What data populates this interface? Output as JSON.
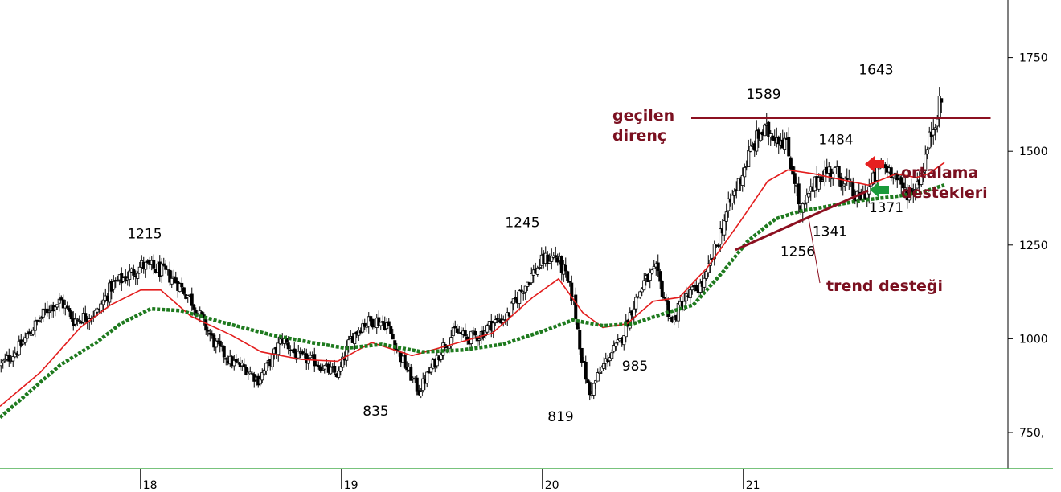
{
  "chart_data": {
    "type": "candlestick",
    "title": "",
    "xlabel": "",
    "ylabel": "",
    "ylim": [
      640,
      1900
    ],
    "y_ticks": [
      "1750",
      "1500",
      "1250",
      "1000",
      "750,"
    ],
    "y_tick_values": [
      1750,
      1500,
      1250,
      1000,
      750
    ],
    "x_ticks": [
      {
        "label": "18",
        "x": 70.5
      },
      {
        "label": "19",
        "x": 170.5
      },
      {
        "label": "20",
        "x": 270.5
      },
      {
        "label": "21",
        "x": 370.5
      }
    ],
    "xlim": [
      0,
      473
    ],
    "price_path": [
      [
        0,
        930
      ],
      [
        8,
        970
      ],
      [
        16,
        1030
      ],
      [
        24,
        1085
      ],
      [
        30,
        1100
      ],
      [
        36,
        1050
      ],
      [
        42,
        1060
      ],
      [
        48,
        1070
      ],
      [
        55,
        1140
      ],
      [
        62,
        1165
      ],
      [
        70,
        1195
      ],
      [
        78,
        1185
      ],
      [
        86,
        1160
      ],
      [
        94,
        1110
      ],
      [
        100,
        1050
      ],
      [
        106,
        990
      ],
      [
        114,
        940
      ],
      [
        122,
        920
      ],
      [
        128,
        890
      ],
      [
        134,
        940
      ],
      [
        140,
        1000
      ],
      [
        148,
        950
      ],
      [
        156,
        940
      ],
      [
        163,
        915
      ],
      [
        168,
        905
      ],
      [
        174,
        1000
      ],
      [
        180,
        1040
      ],
      [
        186,
        1050
      ],
      [
        192,
        1040
      ],
      [
        198,
        960
      ],
      [
        204,
        900
      ],
      [
        208,
        860
      ],
      [
        214,
        920
      ],
      [
        220,
        980
      ],
      [
        226,
        1020
      ],
      [
        232,
        1000
      ],
      [
        238,
        1010
      ],
      [
        244,
        1040
      ],
      [
        252,
        1060
      ],
      [
        258,
        1120
      ],
      [
        264,
        1170
      ],
      [
        270,
        1210
      ],
      [
        276,
        1220
      ],
      [
        280,
        1180
      ],
      [
        285,
        1100
      ],
      [
        289,
        950
      ],
      [
        293,
        850
      ],
      [
        297,
        900
      ],
      [
        302,
        950
      ],
      [
        308,
        990
      ],
      [
        314,
        1080
      ],
      [
        320,
        1150
      ],
      [
        326,
        1180
      ],
      [
        330,
        1110
      ],
      [
        334,
        1040
      ],
      [
        338,
        1090
      ],
      [
        343,
        1120
      ],
      [
        350,
        1150
      ],
      [
        356,
        1250
      ],
      [
        362,
        1350
      ],
      [
        368,
        1430
      ],
      [
        373,
        1500
      ],
      [
        378,
        1550
      ],
      [
        384,
        1550
      ],
      [
        390,
        1530
      ],
      [
        395,
        1430
      ],
      [
        398,
        1330
      ],
      [
        402,
        1380
      ],
      [
        408,
        1440
      ],
      [
        414,
        1450
      ],
      [
        420,
        1420
      ],
      [
        426,
        1370
      ],
      [
        432,
        1400
      ],
      [
        438,
        1460
      ],
      [
        444,
        1450
      ],
      [
        448,
        1400
      ],
      [
        453,
        1390
      ],
      [
        458,
        1440
      ],
      [
        462,
        1530
      ],
      [
        466,
        1610
      ],
      [
        468,
        1630
      ]
    ],
    "series": [
      {
        "name": "",
        "color": "#e31d1d",
        "style": "line",
        "points": [
          [
            0,
            820
          ],
          [
            20,
            910
          ],
          [
            40,
            1030
          ],
          [
            55,
            1090
          ],
          [
            70,
            1130
          ],
          [
            80,
            1130
          ],
          [
            95,
            1060
          ],
          [
            115,
            1010
          ],
          [
            130,
            965
          ],
          [
            150,
            945
          ],
          [
            168,
            940
          ],
          [
            185,
            990
          ],
          [
            205,
            955
          ],
          [
            225,
            985
          ],
          [
            245,
            1015
          ],
          [
            265,
            1110
          ],
          [
            278,
            1160
          ],
          [
            290,
            1070
          ],
          [
            300,
            1030
          ],
          [
            312,
            1040
          ],
          [
            325,
            1100
          ],
          [
            338,
            1110
          ],
          [
            352,
            1190
          ],
          [
            368,
            1310
          ],
          [
            382,
            1420
          ],
          [
            392,
            1450
          ],
          [
            405,
            1440
          ],
          [
            418,
            1425
          ],
          [
            432,
            1410
          ],
          [
            446,
            1440
          ],
          [
            456,
            1430
          ],
          [
            462,
            1440
          ],
          [
            470,
            1470
          ]
        ]
      },
      {
        "name": "",
        "color": "#1e7a1e",
        "style": "dotted",
        "points": [
          [
            0,
            790
          ],
          [
            15,
            860
          ],
          [
            30,
            930
          ],
          [
            48,
            990
          ],
          [
            60,
            1040
          ],
          [
            75,
            1080
          ],
          [
            90,
            1075
          ],
          [
            110,
            1045
          ],
          [
            135,
            1010
          ],
          [
            155,
            990
          ],
          [
            172,
            975
          ],
          [
            190,
            985
          ],
          [
            210,
            965
          ],
          [
            230,
            970
          ],
          [
            250,
            985
          ],
          [
            270,
            1020
          ],
          [
            285,
            1050
          ],
          [
            300,
            1035
          ],
          [
            315,
            1040
          ],
          [
            332,
            1070
          ],
          [
            345,
            1090
          ],
          [
            360,
            1180
          ],
          [
            372,
            1260
          ],
          [
            386,
            1320
          ],
          [
            398,
            1340
          ],
          [
            414,
            1355
          ],
          [
            430,
            1370
          ],
          [
            446,
            1380
          ],
          [
            458,
            1390
          ],
          [
            470,
            1410
          ]
        ]
      }
    ],
    "annotations": [
      {
        "text": "1215",
        "x": 72,
        "y": 1268
      },
      {
        "text": "835",
        "x": 187,
        "y": 795
      },
      {
        "text": "1245",
        "x": 260,
        "y": 1298
      },
      {
        "text": "819",
        "x": 279,
        "y": 780
      },
      {
        "text": "985",
        "x": 316,
        "y": 915
      },
      {
        "text": "1589",
        "x": 380,
        "y": 1640
      },
      {
        "text": "1643",
        "x": 436,
        "y": 1705
      },
      {
        "text": "1484",
        "x": 416,
        "y": 1519
      },
      {
        "text": "1256",
        "x": 397,
        "y": 1221
      },
      {
        "text": "1341",
        "x": 413,
        "y": 1274
      },
      {
        "text": "1371",
        "x": 441,
        "y": 1338
      }
    ],
    "resistance_line": {
      "value": 1589,
      "x0": 344,
      "x1": 493
    },
    "trend_line": {
      "x0": 366,
      "y0": 1237,
      "x1": 432,
      "y1": 1395
    },
    "notes": {
      "resistance": [
        "geçilen",
        "direnç"
      ],
      "averages": [
        "ortalama",
        "destekleri"
      ],
      "trend": "trend desteği"
    },
    "colors": {
      "candle": "#000000",
      "resistance": "#8c1020",
      "note": "#7b1020",
      "red_arrow": "#e62020",
      "green_arrow": "#1a9a3a",
      "axis": "#4caf50"
    },
    "grid": false
  }
}
